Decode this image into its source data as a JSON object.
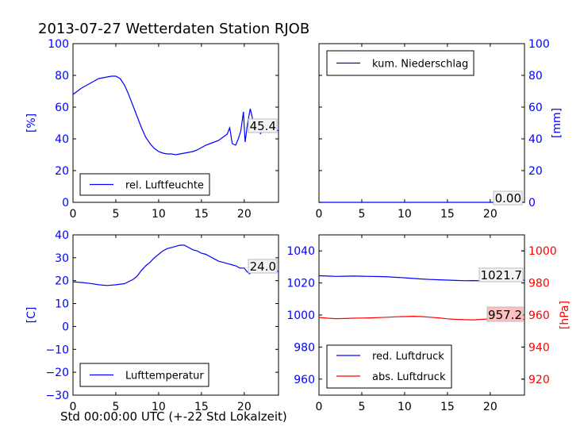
{
  "figure": {
    "title": "2013-07-27 Wetterdaten Station RJOB",
    "xcaption": "Std 00:00:00 UTC (+-22 Std Lokalzeit)"
  },
  "chart_data": [
    {
      "type": "line",
      "ylabel": "[%]",
      "ylim": [
        0,
        100
      ],
      "xlim": [
        0,
        24
      ],
      "yticks": [
        "0",
        "20",
        "40",
        "60",
        "80",
        "100"
      ],
      "xticks": [
        "0",
        "5",
        "10",
        "15",
        "20"
      ],
      "axis_color": "#0000ff",
      "legend_placement": "lower-left",
      "annotation": "45.4",
      "series": [
        {
          "name": "rel. Luftfeuchte",
          "color": "#0000ff",
          "x": [
            0,
            0.5,
            1,
            1.5,
            2,
            2.5,
            3,
            3.5,
            4,
            4.5,
            5,
            5.5,
            6,
            6.5,
            7,
            7.5,
            8,
            8.5,
            9,
            9.5,
            10,
            10.5,
            11,
            11.5,
            12,
            12.5,
            13,
            13.5,
            14,
            14.5,
            15,
            15.5,
            16,
            16.5,
            17,
            17.5,
            18,
            18.3,
            18.6,
            19,
            19.3,
            19.6,
            19.9,
            20.1,
            20.4,
            20.7,
            21,
            21.3,
            21.6,
            21.9,
            22.2,
            22.5,
            22.8,
            23.1,
            23.4,
            23.7,
            24
          ],
          "values": [
            68,
            70,
            72,
            73.5,
            75,
            76.5,
            78,
            78.5,
            79,
            79.5,
            79.5,
            78,
            74,
            68,
            61,
            54,
            47,
            41,
            37,
            34,
            32,
            31,
            30.5,
            30.5,
            30,
            30.5,
            31,
            31.5,
            32,
            33,
            34.5,
            36,
            37,
            38,
            39,
            41,
            43,
            47,
            37,
            36,
            40,
            45,
            57,
            38,
            50,
            59,
            52,
            48,
            52,
            43,
            49,
            45,
            44,
            47,
            45,
            46,
            45
          ]
        }
      ]
    },
    {
      "type": "line",
      "ylabel": "[mm]",
      "ylim": [
        0,
        100
      ],
      "xlim": [
        0,
        24
      ],
      "yticks": [
        "0",
        "20",
        "40",
        "60",
        "80",
        "100"
      ],
      "xticks": [
        "0",
        "5",
        "10",
        "15",
        "20"
      ],
      "axis_color": "#0000ff",
      "legend_placement": "top-left",
      "annotation": "0.00",
      "series": [
        {
          "name": "kum. Niederschlag",
          "color": "#0000ff",
          "x": [
            0,
            24
          ],
          "values": [
            0,
            0
          ]
        }
      ]
    },
    {
      "type": "line",
      "ylabel": "[C]",
      "ylim": [
        -30,
        40
      ],
      "xlim": [
        0,
        24
      ],
      "yticks": [
        "−30",
        "−20",
        "−10",
        "0",
        "10",
        "20",
        "30",
        "40"
      ],
      "xticks": [
        "0",
        "5",
        "10",
        "15",
        "20"
      ],
      "axis_color": "#0000ff",
      "legend_placement": "lower-left",
      "annotation": "24.0",
      "series": [
        {
          "name": "Lufttemperatur",
          "color": "#0000ff",
          "x": [
            0,
            1,
            2,
            3,
            4,
            5,
            6,
            7,
            7.5,
            8,
            8.5,
            9,
            9.5,
            10,
            10.5,
            11,
            11.5,
            12,
            12.5,
            13,
            13.5,
            14,
            14.5,
            15,
            15.5,
            16,
            16.5,
            17,
            17.5,
            18,
            18.5,
            19,
            19.5,
            20,
            20.3,
            20.6,
            21,
            21.5,
            22,
            22.5,
            23,
            23.5,
            24
          ],
          "values": [
            19.5,
            19.2,
            18.8,
            18.2,
            17.9,
            18.2,
            18.7,
            20.5,
            22,
            24.5,
            26.5,
            28,
            30,
            31.5,
            33,
            34,
            34.5,
            35,
            35.5,
            35.5,
            34.5,
            33.5,
            33,
            32,
            31.5,
            30.5,
            29.5,
            28.5,
            28,
            27.5,
            27,
            26.5,
            25.5,
            25.5,
            24,
            23,
            24,
            23.5,
            25.5,
            24.5,
            25,
            24.5,
            24
          ]
        }
      ]
    },
    {
      "type": "line",
      "ylabel": "[hPa]",
      "ylim": [
        950,
        1050
      ],
      "y2lim": [
        910,
        1010
      ],
      "xlim": [
        0,
        24
      ],
      "yticks": [
        "960",
        "980",
        "1000",
        "1020",
        "1040"
      ],
      "y2ticks": [
        "920",
        "940",
        "960",
        "980",
        "1000"
      ],
      "xticks": [
        "0",
        "5",
        "10",
        "15",
        "20"
      ],
      "axis_color": "#0000ff",
      "axis2_color": "#ff0000",
      "legend_placement": "lower-left",
      "annotations": [
        "1021.7",
        "957.2"
      ],
      "series": [
        {
          "name": "red. Luftdruck",
          "color": "#0000ff",
          "axis": "left",
          "x": [
            0,
            1,
            2,
            3,
            4,
            5,
            6,
            7,
            8,
            9,
            10,
            11,
            12,
            13,
            14,
            15,
            16,
            17,
            18,
            19,
            20,
            21,
            22,
            23,
            24
          ],
          "values": [
            1024.5,
            1024.3,
            1024.1,
            1024.2,
            1024.3,
            1024.2,
            1024.1,
            1024.0,
            1023.8,
            1023.5,
            1023.2,
            1022.8,
            1022.5,
            1022.2,
            1022.0,
            1021.8,
            1021.6,
            1021.4,
            1021.5,
            1021.4,
            1021.6,
            1021.9,
            1022.2,
            1021.9,
            1021.7
          ]
        },
        {
          "name": "abs. Luftdruck",
          "color": "#ff0000",
          "axis": "right",
          "x": [
            0,
            1,
            2,
            3,
            4,
            5,
            6,
            7,
            8,
            9,
            10,
            11,
            12,
            13,
            14,
            15,
            16,
            17,
            18,
            19,
            20,
            21,
            22,
            23,
            24
          ],
          "values": [
            958.5,
            958.0,
            957.7,
            957.8,
            958.0,
            958.1,
            958.2,
            958.4,
            958.6,
            958.9,
            959.0,
            959.2,
            959.0,
            958.6,
            958.2,
            957.6,
            957.3,
            957.1,
            957.0,
            957.3,
            957.6,
            958.2,
            958.8,
            958.5,
            957.2
          ]
        }
      ]
    }
  ]
}
